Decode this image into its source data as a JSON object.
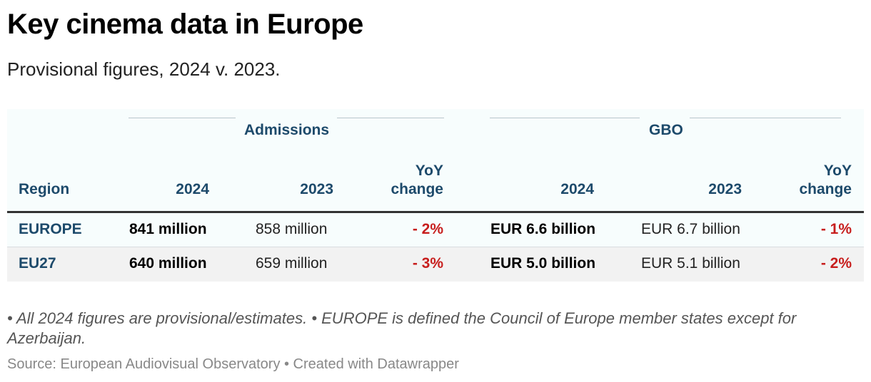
{
  "title": "Key cinema data in Europe",
  "subtitle": "Provisional figures, 2024 v. 2023.",
  "chart_data": {
    "type": "table",
    "groups": [
      "Admissions",
      "GBO"
    ],
    "columns": [
      {
        "group": "",
        "label": "Region"
      },
      {
        "group": "Admissions",
        "label": "2024"
      },
      {
        "group": "Admissions",
        "label": "2023"
      },
      {
        "group": "Admissions",
        "label_line1": "YoY",
        "label_line2": "change"
      },
      {
        "group": "GBO",
        "label": "2024"
      },
      {
        "group": "GBO",
        "label": "2023"
      },
      {
        "group": "GBO",
        "label_line1": "YoY",
        "label_line2": "change"
      }
    ],
    "rows": [
      {
        "region": "EUROPE",
        "admissions_2024": "841 million",
        "admissions_2023": "858 million",
        "admissions_yoy": "- 2%",
        "gbo_2024": "EUR 6.6 billion",
        "gbo_2023": "EUR 6.7 billion",
        "gbo_yoy": "- 1%"
      },
      {
        "region": "EU27",
        "admissions_2024": "640 million",
        "admissions_2023": "659 million",
        "admissions_yoy": "- 3%",
        "gbo_2024": "EUR 5.0 billion",
        "gbo_2023": "EUR 5.1 billion",
        "gbo_yoy": "- 2%"
      }
    ]
  },
  "notes": "• All 2024 figures are provisional/estimates. • EUROPE is defined the Council of Europe member states except for Azerbaijan.",
  "source": "Source: European Audiovisual Observatory • Created with Datawrapper",
  "colors": {
    "header_text": "#1d4a6b",
    "negative": "#c71e1d",
    "table_bg": "#f7fdfd",
    "alt_row_bg": "#f2f2f2"
  }
}
